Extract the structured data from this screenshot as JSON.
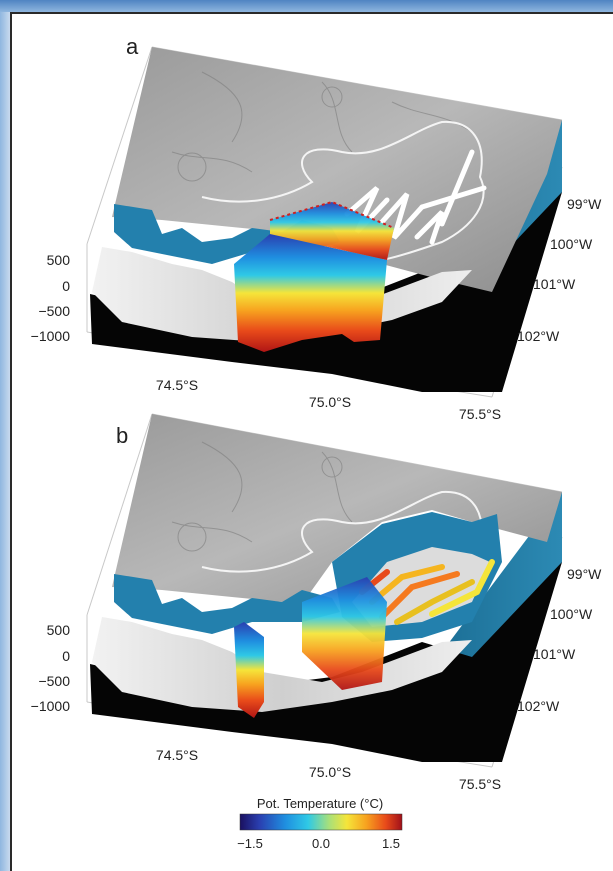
{
  "panels": [
    {
      "letter": "a",
      "z_ticks": [
        "500",
        "0",
        "−500",
        "−1000"
      ],
      "lat_ticks": [
        "74.5°S",
        "75.0°S",
        "75.5°S"
      ],
      "lon_ticks": [
        "99°W",
        "100°W",
        "101°W",
        "102°W"
      ]
    },
    {
      "letter": "b",
      "z_ticks": [
        "500",
        "0",
        "−500",
        "−1000"
      ],
      "lat_ticks": [
        "74.5°S",
        "75.0°S",
        "75.5°S"
      ],
      "lon_ticks": [
        "99°W",
        "100°W",
        "101°W",
        "102°W"
      ]
    }
  ],
  "colorbar": {
    "title": "Pot. Temperature (°C)",
    "ticks": [
      "−1.5",
      "0.0",
      "1.5"
    ],
    "colors": [
      "#1a1060",
      "#2a3fb0",
      "#1f8fe0",
      "#2fc9e6",
      "#a8e07a",
      "#f5e53a",
      "#f7a21f",
      "#e84a1a",
      "#a0101a"
    ]
  }
}
